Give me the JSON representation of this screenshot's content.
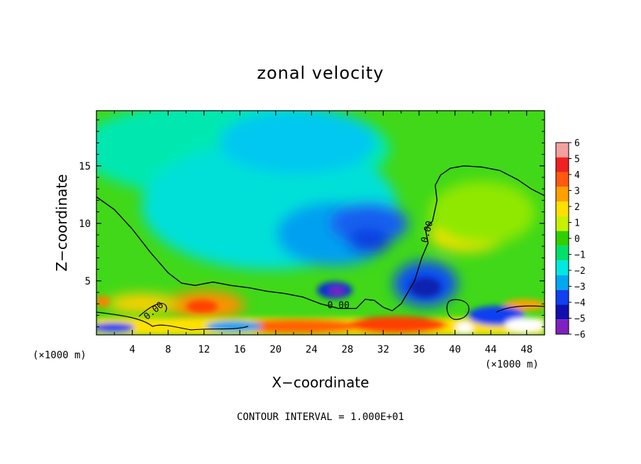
{
  "chart_data": {
    "type": "heatmap",
    "title": "zonal velocity",
    "xlabel": "X−coordinate",
    "ylabel": "Z−coordinate",
    "x_unit_left": "(×1000 m)",
    "x_unit_right": "(×1000 m)",
    "xlim": [
      0,
      50
    ],
    "ylim": [
      0.3,
      19.8
    ],
    "x_ticks": [
      4,
      8,
      12,
      16,
      20,
      24,
      28,
      32,
      36,
      40,
      44,
      48
    ],
    "x_tick_labels": [
      "4",
      "8",
      "12",
      "16",
      "20",
      "24",
      "28",
      "32",
      "36",
      "40",
      "44",
      "48"
    ],
    "y_ticks": [
      5,
      10,
      15
    ],
    "y_tick_labels": [
      "5",
      "10",
      "15"
    ],
    "colorbar": {
      "levels": [
        6,
        5,
        4,
        3,
        2,
        1,
        0,
        -1,
        -2,
        -3,
        -4,
        -5,
        -6
      ],
      "labels": [
        "6",
        "5",
        "4",
        "3",
        "2",
        "1",
        "0",
        "−1",
        "−2",
        "−3",
        "−4",
        "−5",
        "−6"
      ],
      "colors": [
        "#f5a0a0",
        "#f02020",
        "#ff5a10",
        "#ffa000",
        "#ffe000",
        "#c8f000",
        "#30d000",
        "#00e06a",
        "#00e8e0",
        "#00a8f0",
        "#1040f0",
        "#1010b0",
        "#8020c0"
      ]
    },
    "contour_labels": [
      "0.00",
      "0.00",
      "0.00"
    ],
    "contour_label_positions_data": [
      [
        27,
        2.6
      ],
      [
        6.6,
        2.2
      ],
      [
        37.2,
        9.2
      ]
    ],
    "zero_contour_main": [
      [
        0,
        12.3
      ],
      [
        2,
        11.2
      ],
      [
        4,
        9.5
      ],
      [
        6,
        7.5
      ],
      [
        8,
        5.7
      ],
      [
        9.5,
        4.8
      ],
      [
        11,
        4.6
      ],
      [
        13,
        4.9
      ],
      [
        15,
        4.6
      ],
      [
        17,
        4.4
      ],
      [
        19,
        4.1
      ],
      [
        21,
        3.9
      ],
      [
        23,
        3.6
      ],
      [
        25,
        3.0
      ],
      [
        27,
        2.6
      ],
      [
        29,
        2.6
      ],
      [
        30,
        3.4
      ],
      [
        31,
        3.3
      ],
      [
        32,
        2.7
      ],
      [
        33,
        2.4
      ],
      [
        34,
        3.0
      ],
      [
        35.5,
        5.0
      ],
      [
        36.3,
        7.0
      ],
      [
        37,
        8.3
      ],
      [
        36.7,
        9.5
      ],
      [
        37.5,
        10.2
      ],
      [
        38,
        12.0
      ],
      [
        37.8,
        13.3
      ],
      [
        38.4,
        14.2
      ],
      [
        39.5,
        14.8
      ],
      [
        41,
        15.0
      ],
      [
        43,
        14.9
      ],
      [
        45,
        14.6
      ],
      [
        47,
        13.8
      ],
      [
        48.5,
        13.0
      ],
      [
        50,
        12.4
      ]
    ],
    "note_grid": "on",
    "legend": "right"
  },
  "footer": "CONTOUR INTERVAL = 1.000E+01",
  "colors": {
    "background": "#ffffff",
    "frame": "#000000",
    "base_green": "#40d818"
  }
}
